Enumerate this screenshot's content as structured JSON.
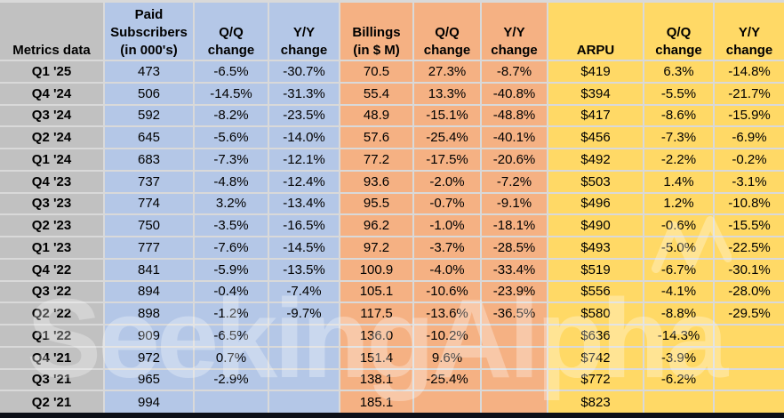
{
  "colors": {
    "page-bg": "#ffffff",
    "gray": "#c1c1c1",
    "blue": "#b4c7e7",
    "orange": "#f5b183",
    "yellow": "#ffd966",
    "grid": "#d9d9d9",
    "bottom-bar": "#0d1018",
    "watermark": "#ffffff"
  },
  "watermark": {
    "text": "SeekingAlpha"
  },
  "chart_data": {
    "type": "table",
    "title": "Quarterly metrics: paid subscribers, billings and ARPU",
    "corner_label": "Metrics data",
    "column_groups": [
      {
        "name": "paid-subscribers",
        "color": "#b4c7e7"
      },
      {
        "name": "billings",
        "color": "#f5b183"
      },
      {
        "name": "arpu",
        "color": "#ffd966"
      }
    ],
    "columns": [
      {
        "label": "Paid\nSubscribers\n(in 000's)",
        "group": "blue"
      },
      {
        "label": "Q/Q\nchange",
        "group": "blue"
      },
      {
        "label": "Y/Y\nchange",
        "group": "blue"
      },
      {
        "label": "Billings\n(in $ M)",
        "group": "orange"
      },
      {
        "label": "Q/Q\nchange",
        "group": "orange"
      },
      {
        "label": "Y/Y\nchange",
        "group": "orange"
      },
      {
        "label": "ARPU",
        "group": "yellow"
      },
      {
        "label": "Q/Q\nchange",
        "group": "yellow"
      },
      {
        "label": "Y/Y\nchange",
        "group": "yellow"
      }
    ],
    "rows": [
      {
        "label": "Q1 '25",
        "values": [
          "473",
          "-6.5%",
          "-30.7%",
          "70.5",
          "27.3%",
          "-8.7%",
          "$419",
          "6.3%",
          "-14.8%"
        ]
      },
      {
        "label": "Q4 '24",
        "values": [
          "506",
          "-14.5%",
          "-31.3%",
          "55.4",
          "13.3%",
          "-40.8%",
          "$394",
          "-5.5%",
          "-21.7%"
        ]
      },
      {
        "label": "Q3 '24",
        "values": [
          "592",
          "-8.2%",
          "-23.5%",
          "48.9",
          "-15.1%",
          "-48.8%",
          "$417",
          "-8.6%",
          "-15.9%"
        ]
      },
      {
        "label": "Q2 '24",
        "values": [
          "645",
          "-5.6%",
          "-14.0%",
          "57.6",
          "-25.4%",
          "-40.1%",
          "$456",
          "-7.3%",
          "-6.9%"
        ]
      },
      {
        "label": "Q1 '24",
        "values": [
          "683",
          "-7.3%",
          "-12.1%",
          "77.2",
          "-17.5%",
          "-20.6%",
          "$492",
          "-2.2%",
          "-0.2%"
        ]
      },
      {
        "label": "Q4 '23",
        "values": [
          "737",
          "-4.8%",
          "-12.4%",
          "93.6",
          "-2.0%",
          "-7.2%",
          "$503",
          "1.4%",
          "-3.1%"
        ]
      },
      {
        "label": "Q3 '23",
        "values": [
          "774",
          "3.2%",
          "-13.4%",
          "95.5",
          "-0.7%",
          "-9.1%",
          "$496",
          "1.2%",
          "-10.8%"
        ]
      },
      {
        "label": "Q2 '23",
        "values": [
          "750",
          "-3.5%",
          "-16.5%",
          "96.2",
          "-1.0%",
          "-18.1%",
          "$490",
          "-0.6%",
          "-15.5%"
        ]
      },
      {
        "label": "Q1 '23",
        "values": [
          "777",
          "-7.6%",
          "-14.5%",
          "97.2",
          "-3.7%",
          "-28.5%",
          "$493",
          "-5.0%",
          "-22.5%"
        ]
      },
      {
        "label": "Q4 '22",
        "values": [
          "841",
          "-5.9%",
          "-13.5%",
          "100.9",
          "-4.0%",
          "-33.4%",
          "$519",
          "-6.7%",
          "-30.1%"
        ]
      },
      {
        "label": "Q3 '22",
        "values": [
          "894",
          "-0.4%",
          "-7.4%",
          "105.1",
          "-10.6%",
          "-23.9%",
          "$556",
          "-4.1%",
          "-28.0%"
        ]
      },
      {
        "label": "Q2 '22",
        "values": [
          "898",
          "-1.2%",
          "-9.7%",
          "117.5",
          "-13.6%",
          "-36.5%",
          "$580",
          "-8.8%",
          "-29.5%"
        ]
      },
      {
        "label": "Q1 '22",
        "values": [
          "909",
          "-6.5%",
          "",
          "136.0",
          "-10.2%",
          "",
          "$636",
          "-14.3%",
          ""
        ]
      },
      {
        "label": "Q4 '21",
        "values": [
          "972",
          "0.7%",
          "",
          "151.4",
          "9.6%",
          "",
          "$742",
          "-3.9%",
          ""
        ]
      },
      {
        "label": "Q3 '21",
        "values": [
          "965",
          "-2.9%",
          "",
          "138.1",
          "-25.4%",
          "",
          "$772",
          "-6.2%",
          ""
        ]
      },
      {
        "label": "Q2 '21",
        "values": [
          "994",
          "",
          "",
          "185.1",
          "",
          "",
          "$823",
          "",
          ""
        ]
      }
    ]
  }
}
